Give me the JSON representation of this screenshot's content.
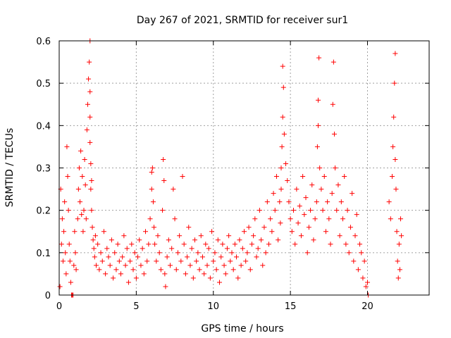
{
  "chart_data": {
    "type": "scatter",
    "title": "Day 267 of 2021, SRMTID for receiver sur1",
    "xlabel": "GPS time / hours",
    "ylabel": "SRMTID / TECUs",
    "xlim": [
      0,
      24
    ],
    "ylim": [
      0,
      0.6
    ],
    "xticks": [
      0,
      5,
      10,
      15,
      20
    ],
    "yticks": [
      0,
      0.1,
      0.2,
      0.3,
      0.4,
      0.5,
      0.6
    ],
    "xtick_labels": [
      "0",
      "5",
      "10",
      "15",
      "20"
    ],
    "ytick_labels": [
      "0",
      "0.1",
      "0.2",
      "0.3",
      "0.4",
      "0.5",
      "0.6"
    ],
    "grid": true,
    "marker": "+",
    "color": "#ff0000",
    "series": [
      {
        "name": "SRMTID",
        "x": [
          0.05,
          0.1,
          0.15,
          0.2,
          0.25,
          0.3,
          0.35,
          0.4,
          0.45,
          0.5,
          0.55,
          0.6,
          0.65,
          0.7,
          0.75,
          0.8,
          0.85,
          0.9,
          0.95,
          1.0,
          1.05,
          1.1,
          1.2,
          1.25,
          1.3,
          1.35,
          1.4,
          1.45,
          1.5,
          1.55,
          1.6,
          1.65,
          1.7,
          1.75,
          1.8,
          1.85,
          1.9,
          1.95,
          2.0,
          2.0,
          2.0,
          2.0,
          2.05,
          2.05,
          2.1,
          2.1,
          2.15,
          2.2,
          2.25,
          2.3,
          2.35,
          2.4,
          2.5,
          2.6,
          2.7,
          2.8,
          2.9,
          3.0,
          3.1,
          3.2,
          3.3,
          3.4,
          3.5,
          3.6,
          3.7,
          3.8,
          3.9,
          4.0,
          4.1,
          4.2,
          4.3,
          4.4,
          4.5,
          4.6,
          4.7,
          4.8,
          4.9,
          5.0,
          5.1,
          5.2,
          5.3,
          5.4,
          5.5,
          5.6,
          5.7,
          5.8,
          5.9,
          6.0,
          6.0,
          6.05,
          6.1,
          6.15,
          6.2,
          6.3,
          6.4,
          6.5,
          6.6,
          6.7,
          6.75,
          6.8,
          6.85,
          6.9,
          7.0,
          7.1,
          7.2,
          7.3,
          7.4,
          7.5,
          7.6,
          7.7,
          7.8,
          7.9,
          8.0,
          8.1,
          8.2,
          8.3,
          8.4,
          8.5,
          8.6,
          8.7,
          8.8,
          8.9,
          9.0,
          9.1,
          9.2,
          9.3,
          9.4,
          9.5,
          9.6,
          9.7,
          9.8,
          9.9,
          10.0,
          10.1,
          10.2,
          10.3,
          10.4,
          10.5,
          10.6,
          10.7,
          10.8,
          10.9,
          11.0,
          11.1,
          11.2,
          11.3,
          11.4,
          11.5,
          11.6,
          11.7,
          11.8,
          11.9,
          12.0,
          12.1,
          12.2,
          12.3,
          12.4,
          12.5,
          12.6,
          12.7,
          12.8,
          12.9,
          13.0,
          13.1,
          13.2,
          13.3,
          13.4,
          13.5,
          13.6,
          13.7,
          13.8,
          13.9,
          14.0,
          14.1,
          14.2,
          14.3,
          14.35,
          14.4,
          14.4,
          14.45,
          14.5,
          14.5,
          14.55,
          14.6,
          14.7,
          14.8,
          14.9,
          15.0,
          15.1,
          15.2,
          15.3,
          15.4,
          15.5,
          15.6,
          15.7,
          15.8,
          15.9,
          16.0,
          16.1,
          16.2,
          16.3,
          16.4,
          16.5,
          16.6,
          16.7,
          16.75,
          16.8,
          16.8,
          16.85,
          16.9,
          17.0,
          17.1,
          17.2,
          17.3,
          17.4,
          17.5,
          17.6,
          17.7,
          17.75,
          17.8,
          17.85,
          17.9,
          18.0,
          18.1,
          18.2,
          18.3,
          18.4,
          18.5,
          18.6,
          18.7,
          18.8,
          18.9,
          19.0,
          19.1,
          19.2,
          19.3,
          19.4,
          19.5,
          19.6,
          19.7,
          19.8,
          19.9,
          20.0,
          20.05,
          21.4,
          21.5,
          21.6,
          21.65,
          21.7,
          21.75,
          21.8,
          21.8,
          21.85,
          21.9,
          21.95,
          22.0,
          22.05,
          22.1,
          22.15,
          22.2
        ],
        "y": [
          0.02,
          0.25,
          0.12,
          0.18,
          0.08,
          0.15,
          0.22,
          0.1,
          0.05,
          0.35,
          0.28,
          0.2,
          0.12,
          0.08,
          0.03,
          0.0,
          0.0,
          0.0,
          0.07,
          0.15,
          0.1,
          0.06,
          0.18,
          0.25,
          0.3,
          0.22,
          0.34,
          0.19,
          0.28,
          0.15,
          0.2,
          0.32,
          0.26,
          0.18,
          0.39,
          0.45,
          0.51,
          0.55,
          0.6,
          0.48,
          0.42,
          0.36,
          0.31,
          0.25,
          0.2,
          0.27,
          0.16,
          0.13,
          0.11,
          0.09,
          0.14,
          0.07,
          0.12,
          0.06,
          0.1,
          0.08,
          0.15,
          0.05,
          0.11,
          0.09,
          0.07,
          0.13,
          0.04,
          0.1,
          0.06,
          0.12,
          0.08,
          0.05,
          0.09,
          0.14,
          0.07,
          0.11,
          0.03,
          0.08,
          0.12,
          0.06,
          0.1,
          0.04,
          0.09,
          0.13,
          0.07,
          0.11,
          0.05,
          0.15,
          0.08,
          0.12,
          0.18,
          0.25,
          0.29,
          0.3,
          0.22,
          0.16,
          0.12,
          0.08,
          0.14,
          0.1,
          0.06,
          0.2,
          0.32,
          0.27,
          0.05,
          0.02,
          0.09,
          0.13,
          0.07,
          0.11,
          0.25,
          0.18,
          0.06,
          0.1,
          0.14,
          0.08,
          0.28,
          0.12,
          0.05,
          0.09,
          0.16,
          0.07,
          0.11,
          0.04,
          0.13,
          0.08,
          0.1,
          0.06,
          0.14,
          0.09,
          0.05,
          0.12,
          0.07,
          0.11,
          0.04,
          0.15,
          0.08,
          0.1,
          0.06,
          0.13,
          0.03,
          0.09,
          0.12,
          0.07,
          0.05,
          0.11,
          0.14,
          0.08,
          0.1,
          0.06,
          0.12,
          0.09,
          0.04,
          0.13,
          0.07,
          0.11,
          0.15,
          0.08,
          0.1,
          0.16,
          0.06,
          0.12,
          0.14,
          0.18,
          0.09,
          0.11,
          0.2,
          0.13,
          0.07,
          0.16,
          0.1,
          0.22,
          0.12,
          0.18,
          0.15,
          0.24,
          0.2,
          0.28,
          0.13,
          0.22,
          0.17,
          0.3,
          0.25,
          0.35,
          0.54,
          0.42,
          0.49,
          0.38,
          0.31,
          0.27,
          0.22,
          0.18,
          0.15,
          0.2,
          0.12,
          0.25,
          0.17,
          0.21,
          0.14,
          0.28,
          0.19,
          0.23,
          0.1,
          0.16,
          0.2,
          0.26,
          0.13,
          0.18,
          0.22,
          0.35,
          0.4,
          0.46,
          0.56,
          0.3,
          0.25,
          0.2,
          0.28,
          0.15,
          0.22,
          0.18,
          0.12,
          0.24,
          0.45,
          0.55,
          0.38,
          0.3,
          0.2,
          0.26,
          0.14,
          0.22,
          0.18,
          0.28,
          0.12,
          0.2,
          0.1,
          0.16,
          0.24,
          0.08,
          0.14,
          0.19,
          0.06,
          0.12,
          0.1,
          0.04,
          0.08,
          0.02,
          0.03,
          0.0,
          0.22,
          0.18,
          0.28,
          0.35,
          0.42,
          0.5,
          0.57,
          0.32,
          0.25,
          0.15,
          0.08,
          0.04,
          0.12,
          0.06,
          0.18,
          0.14
        ]
      }
    ]
  }
}
